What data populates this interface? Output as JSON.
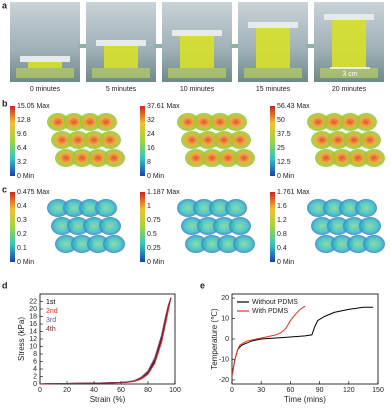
{
  "panel_labels": [
    "a",
    "b",
    "c",
    "d",
    "e"
  ],
  "panel_a": {
    "times": [
      "0 minutes",
      "5 minutes",
      "10 minutes",
      "15 minutes",
      "20 minutes"
    ],
    "scale_bar": "3 cm"
  },
  "panel_b": {
    "colorbars": [
      [
        "15.05 Max",
        "12.8",
        "9.6",
        "6.4",
        "3.2",
        "0 Min"
      ],
      [
        "37.61 Max",
        "32",
        "24",
        "16",
        "8",
        "0 Min"
      ],
      [
        "56.43 Max",
        "50",
        "37.5",
        "25",
        "12.5",
        "0 Min"
      ]
    ]
  },
  "panel_c": {
    "colorbars": [
      [
        "0.475 Max",
        "0.4",
        "0.3",
        "0.2",
        "0.1",
        "0 Min"
      ],
      [
        "1.187 Max",
        "1",
        "0.75",
        "0.5",
        "0.25",
        "0 Min"
      ],
      [
        "1.761 Max",
        "1.6",
        "1.2",
        "0.8",
        "0.4",
        "0 Min"
      ]
    ]
  },
  "chart_data": [
    {
      "type": "line",
      "x_label": "Strain (%)",
      "y_label": "Stress (kPa)",
      "legend": "top-left",
      "x": [
        0,
        10,
        20,
        30,
        40,
        50,
        60,
        65,
        70,
        75,
        80,
        85,
        90,
        93,
        95,
        97
      ],
      "xlim": [
        0,
        100
      ],
      "xticks": [
        0,
        20,
        40,
        60,
        80,
        100
      ],
      "ylim": [
        0,
        24
      ],
      "yticks": [
        0,
        2,
        4,
        6,
        8,
        10,
        12,
        14,
        16,
        18,
        20,
        22
      ],
      "series": [
        {
          "name": "1st",
          "color": "#000000",
          "values": [
            0,
            0.1,
            0.15,
            0.2,
            0.25,
            0.3,
            0.4,
            0.5,
            0.8,
            1.5,
            3,
            6,
            12,
            17,
            20,
            23
          ]
        },
        {
          "name": "2nd",
          "color": "#e8321e",
          "values": [
            0,
            0.1,
            0.15,
            0.2,
            0.25,
            0.3,
            0.4,
            0.5,
            0.7,
            1.3,
            2.6,
            5.5,
            11,
            16,
            19.5,
            23
          ]
        },
        {
          "name": "3rd",
          "color": "#5a5ab4",
          "values": [
            0,
            0.1,
            0.15,
            0.2,
            0.25,
            0.3,
            0.45,
            0.6,
            0.9,
            1.8,
            3.5,
            7,
            13,
            18,
            21,
            23
          ]
        },
        {
          "name": "4th",
          "color": "#8b2a3a",
          "values": [
            0,
            0.1,
            0.15,
            0.2,
            0.25,
            0.3,
            0.42,
            0.55,
            0.85,
            1.6,
            3.2,
            6.5,
            12.5,
            17.5,
            20.5,
            23
          ]
        }
      ]
    },
    {
      "type": "line",
      "x_label": "Time (mins)",
      "y_label": "Temperature (℃)",
      "legend": "top-left",
      "xlim": [
        0,
        150
      ],
      "xticks": [
        0,
        30,
        60,
        90,
        120,
        150
      ],
      "ylim": [
        -22,
        22
      ],
      "yticks": [
        -20,
        -10,
        0,
        10,
        20
      ],
      "series": [
        {
          "name": "Without PDMS",
          "color": "#000000",
          "x": [
            0,
            3,
            6,
            10,
            20,
            30,
            45,
            60,
            75,
            82,
            85,
            88,
            95,
            105,
            120,
            135,
            145
          ],
          "values": [
            -18,
            -10,
            -5,
            -3,
            -1,
            0,
            0.5,
            1,
            1.5,
            2,
            6,
            9,
            11,
            13,
            14.5,
            15.5,
            15.5
          ]
        },
        {
          "name": "With PDMS",
          "color": "#e8321e",
          "x": [
            0,
            3,
            6,
            8,
            15,
            25,
            35,
            45,
            50,
            55,
            60,
            65,
            70,
            75
          ],
          "values": [
            -18,
            -10,
            -5,
            -3,
            -1,
            0,
            1,
            2,
            3,
            5,
            9,
            12,
            14.5,
            16
          ]
        }
      ]
    }
  ]
}
